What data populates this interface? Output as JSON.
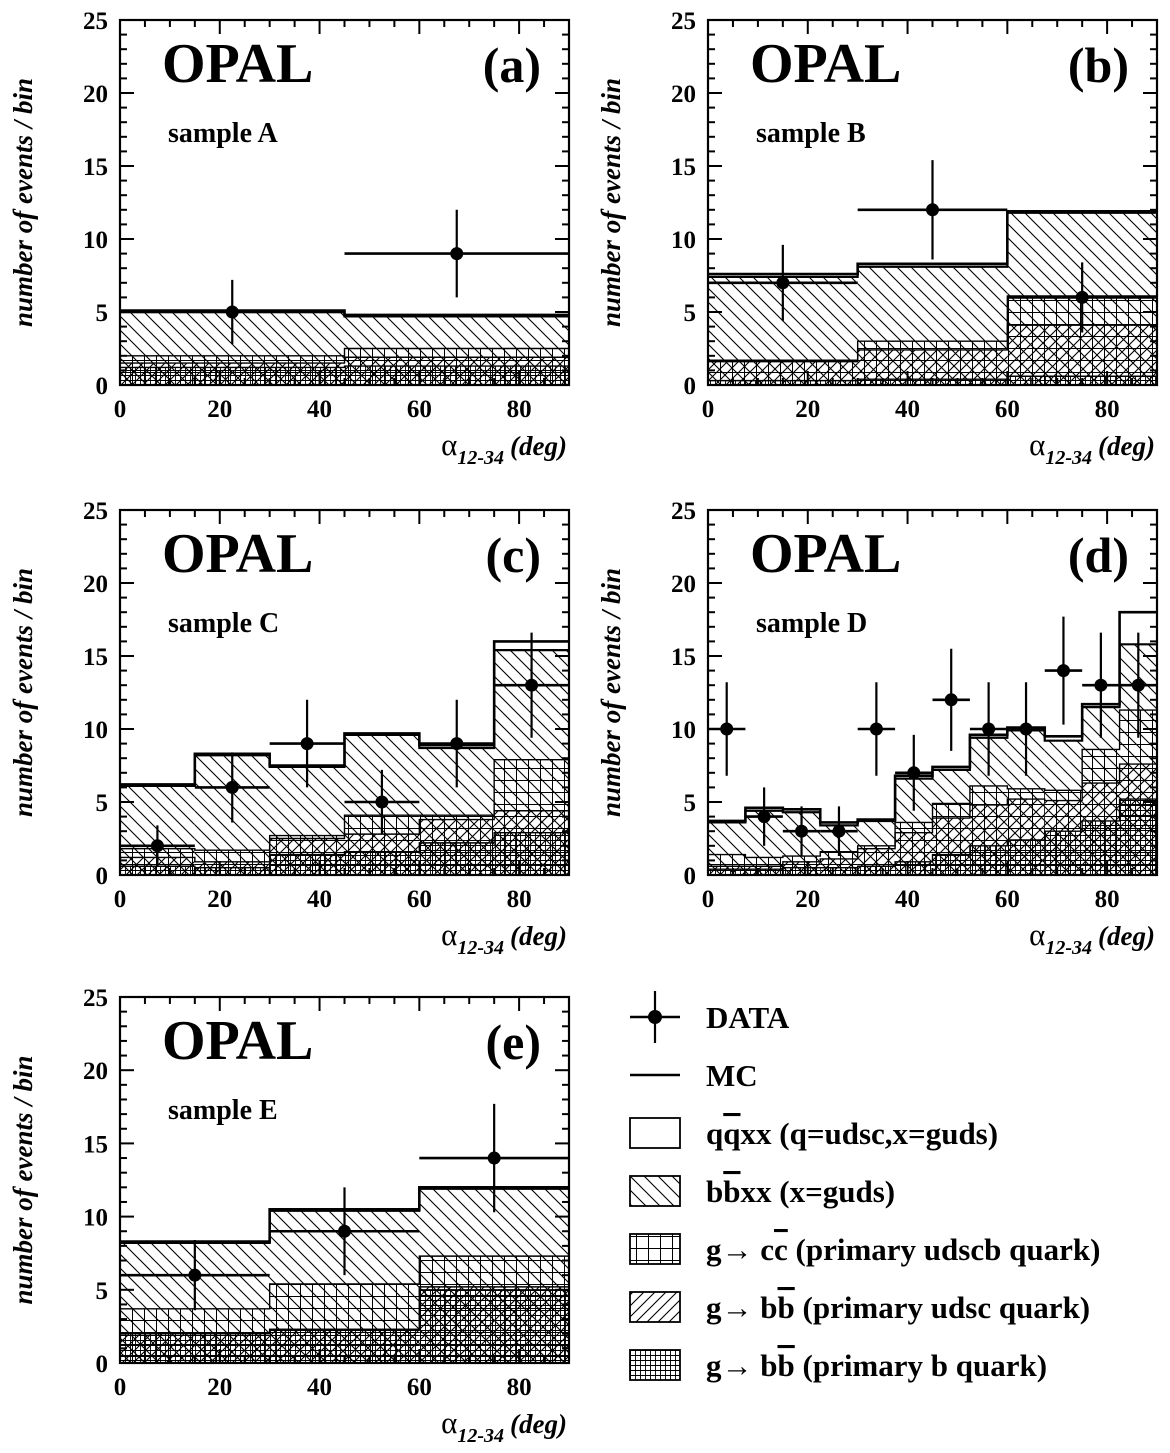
{
  "colors": {
    "ink": "#000000",
    "background": "#ffffff"
  },
  "legend": {
    "entries": [
      {
        "key": "data",
        "label": "DATA",
        "symbol": "data-marker"
      },
      {
        "key": "mc",
        "label": "MC",
        "symbol": "line"
      },
      {
        "key": "qqxx",
        "label": "q̅qxx (q=udsc,x=guds)",
        "parts": [
          "q",
          "q",
          "xx (q=udsc,x=guds)"
        ],
        "symbol": "hatch-none"
      },
      {
        "key": "bbxx",
        "label": "bb̅xx (x=guds)",
        "parts": [
          "b",
          "b",
          "xx (x=guds)"
        ],
        "symbol": "hatch-backslash"
      },
      {
        "key": "gcc",
        "label": "g→ cc̅ (primary udscb quark)",
        "parts": [
          "g→ c",
          "c",
          " (primary udscb quark)"
        ],
        "symbol": "hatch-grid"
      },
      {
        "key": "gbb_udsc",
        "label": "g→ bb̅ (primary udsc quark)",
        "parts": [
          "g→ b",
          "b",
          " (primary udsc quark)"
        ],
        "symbol": "hatch-slash"
      },
      {
        "key": "gbb_b",
        "label": "g→ bb̅ (primary b quark)",
        "parts": [
          "g→ b",
          "b",
          " (primary b quark)"
        ],
        "symbol": "hatch-finegrid"
      }
    ]
  },
  "chart_data": [
    {
      "id": "a",
      "type": "bar",
      "experiment": "OPAL",
      "panel_label": "(a)",
      "sample_label": "sample A",
      "ylabel": "number of events / bin",
      "xlabel": {
        "symbol": "α",
        "subscript": "12-34",
        "unit": "(deg)"
      },
      "xlim": [
        0,
        90
      ],
      "ylim": [
        0,
        25
      ],
      "xticks": [
        "0",
        "20",
        "40",
        "60",
        "80"
      ],
      "yticks": [
        "0",
        "5",
        "10",
        "15",
        "20",
        "25"
      ],
      "bin_edges": [
        0,
        45,
        90
      ],
      "stack_tops": {
        "gbb_b": [
          1.2,
          1.3
        ],
        "gbb_udsc": [
          1.5,
          1.9
        ],
        "gcc": [
          2.0,
          2.5
        ],
        "bbxx": [
          5.0,
          4.7
        ],
        "mc": [
          5.1,
          4.8
        ]
      },
      "data": {
        "x": [
          22.5,
          67.5
        ],
        "y": [
          5,
          9
        ],
        "xerr": [
          22.5,
          22.5
        ],
        "yerr": [
          2.2,
          3.0
        ]
      }
    },
    {
      "id": "b",
      "type": "bar",
      "experiment": "OPAL",
      "panel_label": "(b)",
      "sample_label": "sample B",
      "ylabel": "number of events / bin",
      "xlabel": {
        "symbol": "α",
        "subscript": "12-34",
        "unit": "(deg)"
      },
      "xlim": [
        0,
        90
      ],
      "ylim": [
        0,
        25
      ],
      "xticks": [
        "0",
        "20",
        "40",
        "60",
        "80"
      ],
      "yticks": [
        "0",
        "5",
        "10",
        "15",
        "20",
        "25"
      ],
      "bin_edges": [
        0,
        30,
        60,
        90
      ],
      "stack_tops": {
        "gbb_b": [
          0.3,
          0.4,
          0.6
        ],
        "gbb_udsc": [
          1.6,
          2.4,
          4.1
        ],
        "gcc": [
          1.7,
          3.0,
          6.1
        ],
        "bbxx": [
          7.4,
          8.1,
          11.8
        ],
        "mc": [
          7.6,
          8.3,
          11.9
        ]
      },
      "data": {
        "x": [
          15,
          45,
          75
        ],
        "y": [
          7,
          12,
          6
        ],
        "xerr": [
          15,
          15,
          15
        ],
        "yerr": [
          2.6,
          3.4,
          2.4
        ]
      }
    },
    {
      "id": "c",
      "type": "bar",
      "experiment": "OPAL",
      "panel_label": "(c)",
      "sample_label": "sample C",
      "ylabel": "number of events / bin",
      "xlabel": {
        "symbol": "α",
        "subscript": "12-34",
        "unit": "(deg)"
      },
      "xlim": [
        0,
        90
      ],
      "ylim": [
        0,
        25
      ],
      "xticks": [
        "0",
        "20",
        "40",
        "60",
        "80"
      ],
      "yticks": [
        "0",
        "5",
        "10",
        "15",
        "20",
        "25"
      ],
      "bin_edges": [
        0,
        15,
        30,
        45,
        60,
        75,
        90
      ],
      "stack_tops": {
        "gbb_b": [
          0.6,
          0.5,
          1.4,
          1.6,
          2.2,
          2.9
        ],
        "gbb_udsc": [
          1.2,
          0.9,
          2.5,
          2.8,
          3.8,
          4.4
        ],
        "gcc": [
          1.8,
          1.7,
          2.7,
          4.1,
          4.1,
          7.9
        ],
        "bbxx": [
          6.1,
          8.2,
          7.4,
          9.6,
          8.7,
          15.4
        ],
        "mc": [
          6.2,
          8.3,
          7.5,
          9.7,
          8.9,
          16.0
        ]
      },
      "data": {
        "x": [
          7.5,
          22.5,
          37.5,
          52.5,
          67.5,
          82.5
        ],
        "y": [
          2,
          6,
          9,
          5,
          9,
          13
        ],
        "xerr": [
          7.5,
          7.5,
          7.5,
          7.5,
          7.5,
          7.5
        ],
        "yerr": [
          1.4,
          2.4,
          3.0,
          2.2,
          3.0,
          3.6
        ]
      }
    },
    {
      "id": "d",
      "type": "bar",
      "experiment": "OPAL",
      "panel_label": "(d)",
      "sample_label": "sample D",
      "ylabel": "number of events / bin",
      "xlabel": {
        "symbol": "α",
        "subscript": "12-34",
        "unit": "(deg)"
      },
      "xlim": [
        0,
        90
      ],
      "ylim": [
        0,
        25
      ],
      "xticks": [
        "0",
        "20",
        "40",
        "60",
        "80"
      ],
      "yticks": [
        "0",
        "5",
        "10",
        "15",
        "20",
        "25"
      ],
      "bin_edges": [
        0,
        7.5,
        15,
        22.5,
        30,
        37.5,
        45,
        52.5,
        60,
        67.5,
        75,
        82.5,
        90
      ],
      "stack_tops": {
        "gbb_b": [
          0.4,
          0.4,
          0.5,
          0.5,
          0.6,
          0.9,
          1.4,
          2.0,
          2.4,
          3.0,
          3.7,
          5.2
        ],
        "gbb_udsc": [
          0.6,
          0.6,
          0.9,
          1.1,
          1.8,
          2.9,
          3.9,
          4.8,
          5.2,
          5.1,
          6.3,
          7.6
        ],
        "gcc": [
          1.4,
          1.2,
          1.3,
          1.6,
          2.0,
          3.6,
          4.9,
          6.1,
          5.9,
          5.8,
          8.6,
          11.3
        ],
        "bbxx": [
          3.6,
          4.4,
          4.3,
          3.4,
          3.7,
          6.6,
          7.2,
          9.4,
          9.9,
          9.2,
          11.5,
          15.8
        ],
        "mc": [
          3.7,
          4.6,
          4.5,
          3.6,
          3.8,
          6.8,
          7.4,
          9.6,
          10.1,
          9.5,
          11.7,
          18.0
        ]
      },
      "data": {
        "x": [
          3.75,
          11.25,
          18.75,
          26.25,
          33.75,
          41.25,
          48.75,
          56.25,
          63.75,
          71.25,
          78.75,
          86.25
        ],
        "y": [
          10,
          4,
          3,
          3,
          10,
          7,
          12,
          10,
          10,
          14,
          13,
          13
        ],
        "xerr": [
          3.75,
          3.75,
          3.75,
          3.75,
          3.75,
          3.75,
          3.75,
          3.75,
          3.75,
          3.75,
          3.75,
          3.75
        ],
        "yerr": [
          3.2,
          2.0,
          1.7,
          1.7,
          3.2,
          2.6,
          3.5,
          3.2,
          3.2,
          3.7,
          3.6,
          3.6
        ]
      }
    },
    {
      "id": "e",
      "type": "bar",
      "experiment": "OPAL",
      "panel_label": "(e)",
      "sample_label": "sample E",
      "ylabel": "number of events / bin",
      "xlabel": {
        "symbol": "α",
        "subscript": "12-34",
        "unit": "(deg)"
      },
      "xlim": [
        0,
        90
      ],
      "ylim": [
        0,
        25
      ],
      "xticks": [
        "0",
        "20",
        "40",
        "60",
        "80"
      ],
      "yticks": [
        "0",
        "5",
        "10",
        "15",
        "20",
        "25"
      ],
      "bin_edges": [
        0,
        30,
        60,
        90
      ],
      "stack_tops": {
        "gbb_b": [
          2.0,
          2.3,
          5.0
        ],
        "gbb_udsc": [
          2.0,
          2.3,
          5.2
        ],
        "gcc": [
          3.7,
          5.4,
          7.3
        ],
        "bbxx": [
          8.2,
          10.4,
          11.9
        ],
        "mc": [
          8.3,
          10.5,
          12.0
        ]
      },
      "data": {
        "x": [
          15,
          45,
          75
        ],
        "y": [
          6,
          9,
          14
        ],
        "xerr": [
          15,
          15,
          15
        ],
        "yerr": [
          2.4,
          3.0,
          3.7
        ]
      }
    }
  ]
}
